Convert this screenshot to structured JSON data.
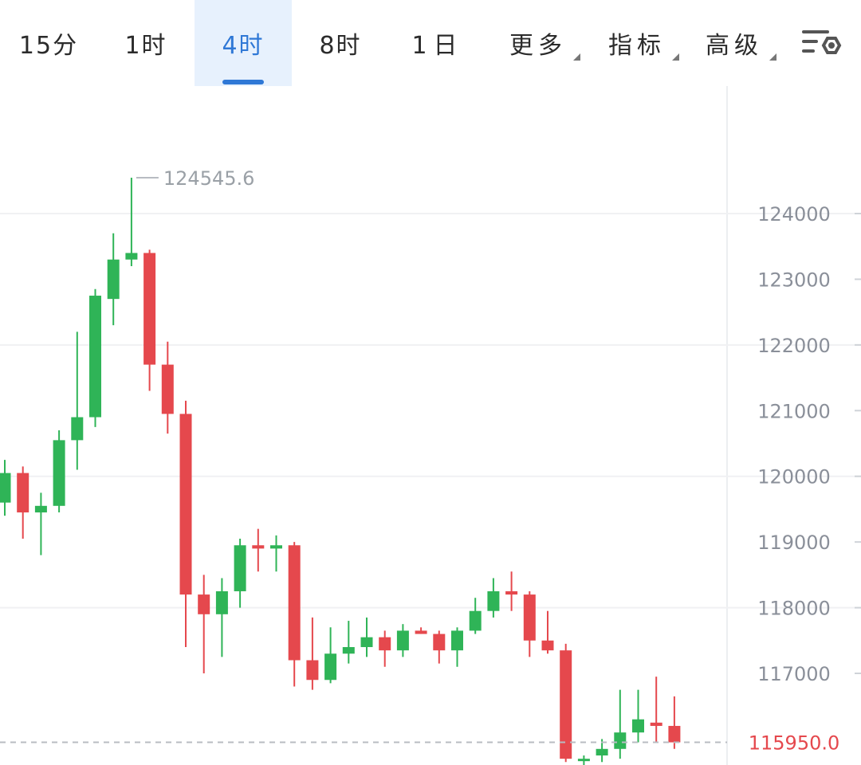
{
  "tabs": [
    {
      "label": "15分",
      "active": false,
      "dropdown": false
    },
    {
      "label": "1时",
      "active": false,
      "dropdown": false
    },
    {
      "label": "4时",
      "active": true,
      "dropdown": false
    },
    {
      "label": "8时",
      "active": false,
      "dropdown": false
    },
    {
      "label": "1日",
      "active": false,
      "dropdown": false
    },
    {
      "label": "更多",
      "active": false,
      "dropdown": true
    },
    {
      "label": "指标",
      "active": false,
      "dropdown": true
    },
    {
      "label": "高级",
      "active": false,
      "dropdown": true
    }
  ],
  "settings_icon": "chart-settings-icon",
  "colors": {
    "up": "#2fb457",
    "down": "#e5484d",
    "accent": "#2f78d6",
    "grid": "#f0f1f3",
    "axis_text": "#8a8f99"
  },
  "chart_data": {
    "type": "candlestick",
    "ylim": [
      115700,
      125700
    ],
    "yticks": [
      {
        "value": 124000,
        "label": "124000"
      },
      {
        "value": 123000,
        "label": "123000"
      },
      {
        "value": 122000,
        "label": "122000"
      },
      {
        "value": 121000,
        "label": "121000"
      },
      {
        "value": 120000,
        "label": "120000"
      },
      {
        "value": 119000,
        "label": "119000"
      },
      {
        "value": 118000,
        "label": "118000"
      },
      {
        "value": 117000,
        "label": "117000"
      }
    ],
    "max_marker": {
      "value": 124545.6,
      "label": "124545.6"
    },
    "last_price": {
      "value": 115950.0,
      "label": "115950.0"
    },
    "candles": [
      {
        "o": 119600,
        "h": 120250,
        "l": 119400,
        "c": 120050
      },
      {
        "o": 120050,
        "h": 120150,
        "l": 119050,
        "c": 119450
      },
      {
        "o": 119450,
        "h": 119750,
        "l": 118800,
        "c": 119550
      },
      {
        "o": 119550,
        "h": 120700,
        "l": 119450,
        "c": 120550
      },
      {
        "o": 120550,
        "h": 122200,
        "l": 120100,
        "c": 120900
      },
      {
        "o": 120900,
        "h": 122850,
        "l": 120750,
        "c": 122750
      },
      {
        "o": 122700,
        "h": 123700,
        "l": 122300,
        "c": 123300
      },
      {
        "o": 123300,
        "h": 124545.6,
        "l": 123200,
        "c": 123400
      },
      {
        "o": 123400,
        "h": 123450,
        "l": 121300,
        "c": 121700
      },
      {
        "o": 121700,
        "h": 122050,
        "l": 120650,
        "c": 120950
      },
      {
        "o": 120950,
        "h": 121150,
        "l": 117400,
        "c": 118200
      },
      {
        "o": 118200,
        "h": 118500,
        "l": 117000,
        "c": 117900
      },
      {
        "o": 117900,
        "h": 118450,
        "l": 117250,
        "c": 118250
      },
      {
        "o": 118250,
        "h": 119050,
        "l": 118000,
        "c": 118950
      },
      {
        "o": 118950,
        "h": 119200,
        "l": 118550,
        "c": 118900
      },
      {
        "o": 118900,
        "h": 119100,
        "l": 118550,
        "c": 118950
      },
      {
        "o": 118950,
        "h": 119000,
        "l": 116800,
        "c": 117200
      },
      {
        "o": 117200,
        "h": 117850,
        "l": 116750,
        "c": 116900
      },
      {
        "o": 116900,
        "h": 117700,
        "l": 116850,
        "c": 117300
      },
      {
        "o": 117300,
        "h": 117800,
        "l": 117150,
        "c": 117400
      },
      {
        "o": 117400,
        "h": 117850,
        "l": 117250,
        "c": 117550
      },
      {
        "o": 117550,
        "h": 117650,
        "l": 117100,
        "c": 117350
      },
      {
        "o": 117350,
        "h": 117750,
        "l": 117250,
        "c": 117650
      },
      {
        "o": 117650,
        "h": 117700,
        "l": 117600,
        "c": 117600
      },
      {
        "o": 117600,
        "h": 117650,
        "l": 117150,
        "c": 117350
      },
      {
        "o": 117350,
        "h": 117700,
        "l": 117100,
        "c": 117650
      },
      {
        "o": 117650,
        "h": 118150,
        "l": 117600,
        "c": 117950
      },
      {
        "o": 117950,
        "h": 118450,
        "l": 117850,
        "c": 118250
      },
      {
        "o": 118250,
        "h": 118550,
        "l": 117950,
        "c": 118200
      },
      {
        "o": 118200,
        "h": 118250,
        "l": 117250,
        "c": 117500
      },
      {
        "o": 117500,
        "h": 117950,
        "l": 117300,
        "c": 117350
      },
      {
        "o": 117350,
        "h": 117450,
        "l": 115650,
        "c": 115700
      },
      {
        "o": 115700,
        "h": 115750,
        "l": 115600,
        "c": 115700
      },
      {
        "o": 115750,
        "h": 116000,
        "l": 115650,
        "c": 115850
      },
      {
        "o": 115850,
        "h": 116750,
        "l": 115700,
        "c": 116100
      },
      {
        "o": 116100,
        "h": 116750,
        "l": 115950,
        "c": 116300
      },
      {
        "o": 116250,
        "h": 116950,
        "l": 115950,
        "c": 116200
      },
      {
        "o": 116200,
        "h": 116650,
        "l": 115850,
        "c": 115950
      }
    ]
  }
}
